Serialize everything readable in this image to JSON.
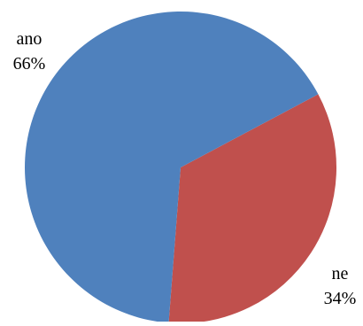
{
  "chart_data": {
    "type": "pie",
    "title": "",
    "start_angle_deg": 62,
    "direction": "clockwise",
    "slices": [
      {
        "label": "ne",
        "value": 34,
        "percent_label": "34%",
        "color": "#C0504D"
      },
      {
        "label": "ano",
        "value": 66,
        "percent_label": "66%",
        "color": "#4F81BD"
      }
    ],
    "legend": "none"
  }
}
